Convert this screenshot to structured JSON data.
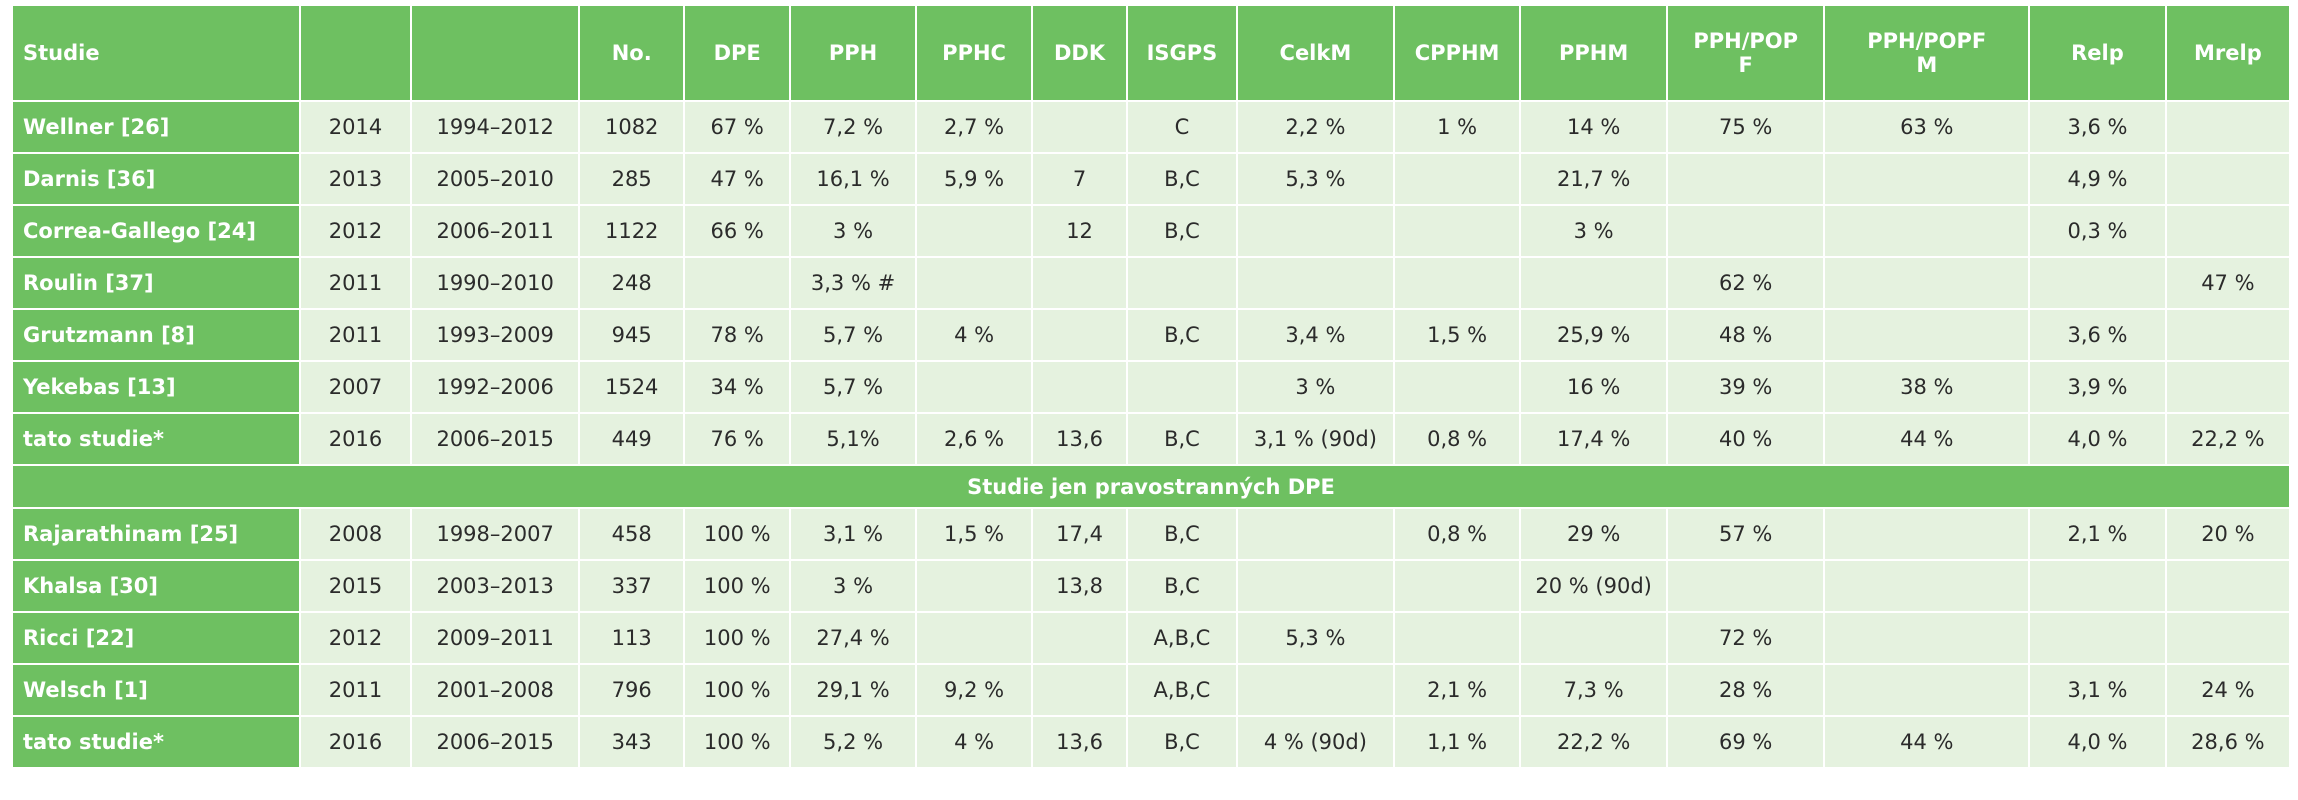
{
  "columns": [
    "Studie",
    "",
    "",
    "No.",
    "DPE",
    "PPH",
    "PPHC",
    "DDK",
    "ISGPS",
    "CelkM",
    "CPPHM",
    "PPHM",
    "PPH/POPF",
    "PPH/POPFM",
    "Relp",
    "Mrelp"
  ],
  "header_labels": {
    "studie": "Studie",
    "blank1": "",
    "blank2": "",
    "no": "No.",
    "dpe": "DPE",
    "pph": "PPH",
    "pphc": "PPHC",
    "ddk": "DDK",
    "isgps": "ISGPS",
    "celkm": "CelkM",
    "cpphm": "CPPHM",
    "pphm": "PPHM",
    "pph_popf_line1": "PPH/POP",
    "pph_popf_line2": "F",
    "pph_popfm_line1": "PPH/POPF",
    "pph_popfm_line2": "M",
    "relp": "Relp",
    "mrelp": "Mrelp"
  },
  "rows_group1": [
    [
      "Wellner [26]",
      "2014",
      "1994–2012",
      "1082",
      "67 %",
      "7,2 %",
      "2,7 %",
      "",
      "C",
      "2,2 %",
      "1 %",
      "14 %",
      "75 %",
      "63 %",
      "3,6 %",
      ""
    ],
    [
      "Darnis [36]",
      "2013",
      "2005–2010",
      "285",
      "47 %",
      "16,1 %",
      "5,9 %",
      "7",
      "B,C",
      "5,3 %",
      "",
      "21,7 %",
      "",
      "",
      "4,9 %",
      ""
    ],
    [
      "Correa-Gallego [24]",
      "2012",
      "2006–2011",
      "1122",
      "66 %",
      "3 %",
      "",
      "12",
      "B,C",
      "",
      "",
      "3 %",
      "",
      "",
      "0,3 %",
      ""
    ],
    [
      "Roulin [37]",
      "2011",
      "1990–2010",
      "248",
      "",
      "3,3 % #",
      "",
      "",
      "",
      "",
      "",
      "",
      "62 %",
      "",
      "",
      "47 %"
    ],
    [
      "Grutzmann [8]",
      "2011",
      "1993–2009",
      "945",
      "78 %",
      "5,7 %",
      "4 %",
      "",
      "B,C",
      "3,4 %",
      "1,5 %",
      "25,9 %",
      "48 %",
      "",
      "3,6 %",
      ""
    ],
    [
      "Yekebas [13]",
      "2007",
      "1992–2006",
      "1524",
      "34 %",
      "5,7 %",
      "",
      "",
      "",
      "3 %",
      "",
      "16 %",
      "39 %",
      "38 %",
      "3,9 %",
      ""
    ],
    [
      "tato studie*",
      "2016",
      "2006–2015",
      "449",
      "76 %",
      "5,1%",
      "2,6 %",
      "13,6",
      "B,C",
      "3,1 % (90d)",
      "0,8 %",
      "17,4 %",
      "40 %",
      "44 %",
      "4,0 %",
      "22,2 %"
    ]
  ],
  "section_title": "Studie jen pravostranných DPE",
  "rows_group2": [
    [
      "Rajarathinam [25]",
      "2008",
      "1998–2007",
      "458",
      "100 %",
      "3,1 %",
      "1,5 %",
      "17,4",
      "B,C",
      "",
      "0,8 %",
      "29 %",
      "57 %",
      "",
      "2,1 %",
      "20 %"
    ],
    [
      "Khalsa [30]",
      "2015",
      "2003–2013",
      "337",
      "100 %",
      "3 %",
      "",
      "13,8",
      "B,C",
      "",
      "",
      "20 % (90d)",
      "",
      "",
      "",
      ""
    ],
    [
      "Ricci [22]",
      "2012",
      "2009–2011",
      "113",
      "100 %",
      "27,4 %",
      "",
      "",
      "A,B,C",
      "5,3 %",
      "",
      "",
      "72 %",
      "",
      "",
      ""
    ],
    [
      "Welsch [1]",
      "2011",
      "2001–2008",
      "796",
      "100 %",
      "29,1 %",
      "9,2 %",
      "",
      "A,B,C",
      "",
      "2,1 %",
      "7,3 %",
      "28 %",
      "",
      "3,1 %",
      "24 %"
    ],
    [
      "tato studie*",
      "2016",
      "2006–2015",
      "343",
      "100 %",
      "5,2 %",
      "4 %",
      "13,6",
      "B,C",
      "4 %  (90d)",
      "1,1 %",
      "22,2 %",
      "69 %",
      "44 %",
      "4,0 %",
      "28,6 %"
    ]
  ],
  "colors": {
    "header_green": "#6ec061",
    "cell_bg": "#e5f2df",
    "text_dark": "#2b2b2b",
    "text_white": "#ffffff"
  }
}
